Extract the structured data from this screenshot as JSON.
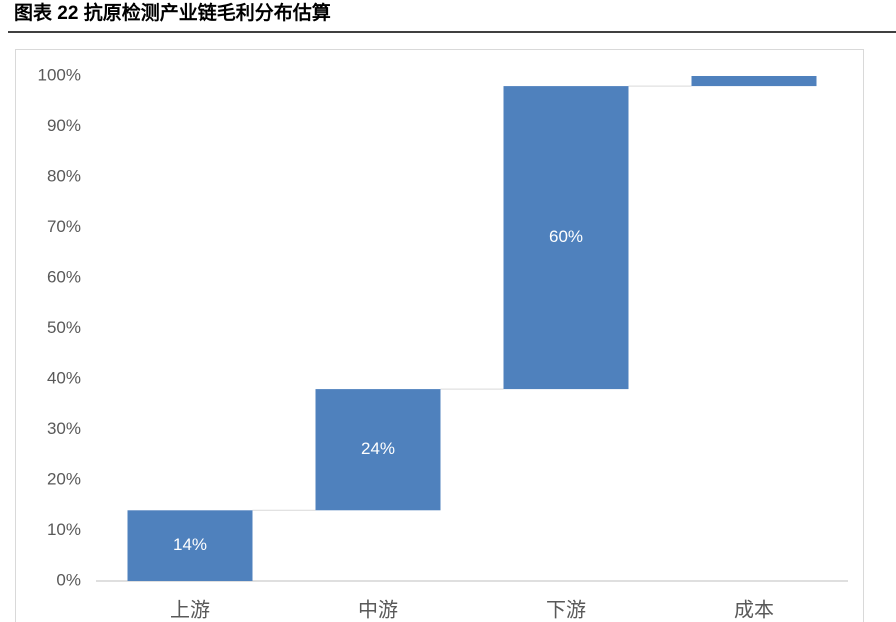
{
  "title": "图表 22 抗原检测产业链毛利分布估算",
  "chart_data": {
    "type": "waterfall",
    "categories": [
      "上游",
      "中游",
      "下游",
      "成本"
    ],
    "values": [
      14,
      24,
      60,
      2
    ],
    "value_labels": [
      "14%",
      "24%",
      "60%",
      null
    ],
    "color": "#4f81bd",
    "ylim": [
      0,
      100
    ],
    "yticks": [
      {
        "value": 0,
        "label": "0%"
      },
      {
        "value": 10,
        "label": "10%"
      },
      {
        "value": 20,
        "label": "20%"
      },
      {
        "value": 30,
        "label": "30%"
      },
      {
        "value": 40,
        "label": "40%"
      },
      {
        "value": 50,
        "label": "50%"
      },
      {
        "value": 60,
        "label": "60%"
      },
      {
        "value": 70,
        "label": "70%"
      },
      {
        "value": 80,
        "label": "80%"
      },
      {
        "value": 90,
        "label": "90%"
      },
      {
        "value": 100,
        "label": "100%"
      }
    ],
    "grid": false
  }
}
